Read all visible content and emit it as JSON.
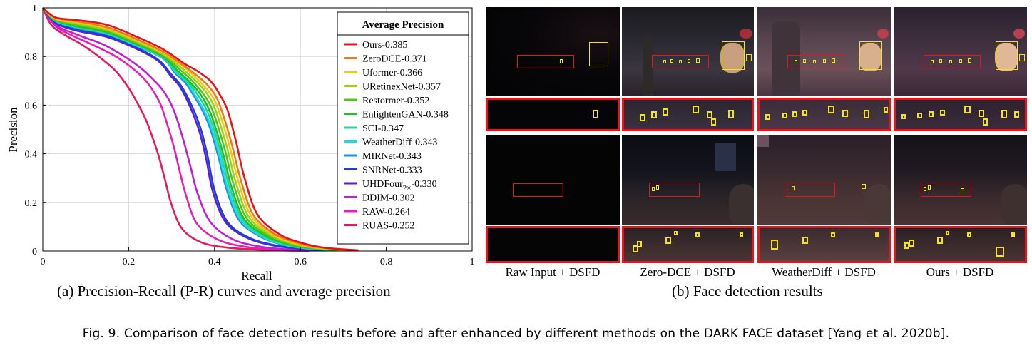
{
  "chart_data": {
    "type": "line",
    "xlabel": "Recall",
    "ylabel": "Precision",
    "xlim": [
      0,
      1
    ],
    "ylim": [
      0,
      1
    ],
    "xticks": [
      "0",
      "0.2",
      "0.4",
      "0.6",
      "0.8",
      "1"
    ],
    "yticks": [
      "0",
      "0.2",
      "0.4",
      "0.6",
      "0.8",
      "1"
    ],
    "grid": true,
    "legend_title": "Average Precision",
    "legend_position": "top-right",
    "series": [
      {
        "name": "Ours-0.385",
        "color": "#e8141b",
        "points": [
          [
            0,
            1
          ],
          [
            0.03,
            0.96
          ],
          [
            0.08,
            0.95
          ],
          [
            0.15,
            0.93
          ],
          [
            0.22,
            0.88
          ],
          [
            0.28,
            0.83
          ],
          [
            0.33,
            0.77
          ],
          [
            0.36,
            0.74
          ],
          [
            0.39,
            0.7
          ],
          [
            0.41,
            0.65
          ],
          [
            0.43,
            0.58
          ],
          [
            0.45,
            0.45
          ],
          [
            0.47,
            0.3
          ],
          [
            0.5,
            0.15
          ],
          [
            0.55,
            0.07
          ],
          [
            0.6,
            0.035
          ],
          [
            0.65,
            0.015
          ],
          [
            0.7,
            0.007
          ],
          [
            0.735,
            0.003
          ]
        ]
      },
      {
        "name": "ZeroDCE-0.371",
        "color": "#f27a14",
        "points": [
          [
            0,
            1
          ],
          [
            0.03,
            0.96
          ],
          [
            0.08,
            0.945
          ],
          [
            0.15,
            0.92
          ],
          [
            0.22,
            0.87
          ],
          [
            0.28,
            0.82
          ],
          [
            0.33,
            0.76
          ],
          [
            0.36,
            0.72
          ],
          [
            0.385,
            0.68
          ],
          [
            0.405,
            0.63
          ],
          [
            0.42,
            0.56
          ],
          [
            0.44,
            0.44
          ],
          [
            0.46,
            0.3
          ],
          [
            0.49,
            0.15
          ],
          [
            0.54,
            0.07
          ],
          [
            0.6,
            0.03
          ],
          [
            0.65,
            0.014
          ],
          [
            0.7,
            0.006
          ],
          [
            0.72,
            0.003
          ]
        ]
      },
      {
        "name": "Uformer-0.366",
        "color": "#e8cc1a",
        "points": [
          [
            0,
            1
          ],
          [
            0.03,
            0.955
          ],
          [
            0.08,
            0.94
          ],
          [
            0.15,
            0.915
          ],
          [
            0.22,
            0.865
          ],
          [
            0.28,
            0.815
          ],
          [
            0.33,
            0.755
          ],
          [
            0.355,
            0.715
          ],
          [
            0.38,
            0.67
          ],
          [
            0.4,
            0.62
          ],
          [
            0.415,
            0.55
          ],
          [
            0.435,
            0.43
          ],
          [
            0.455,
            0.29
          ],
          [
            0.485,
            0.145
          ],
          [
            0.535,
            0.068
          ],
          [
            0.59,
            0.03
          ],
          [
            0.64,
            0.014
          ],
          [
            0.69,
            0.006
          ],
          [
            0.715,
            0.003
          ]
        ]
      },
      {
        "name": "URetinexNet-0.357",
        "color": "#9ad41c",
        "points": [
          [
            0,
            1
          ],
          [
            0.03,
            0.955
          ],
          [
            0.08,
            0.935
          ],
          [
            0.15,
            0.91
          ],
          [
            0.22,
            0.86
          ],
          [
            0.28,
            0.81
          ],
          [
            0.325,
            0.75
          ],
          [
            0.35,
            0.71
          ],
          [
            0.375,
            0.665
          ],
          [
            0.395,
            0.61
          ],
          [
            0.41,
            0.54
          ],
          [
            0.43,
            0.42
          ],
          [
            0.45,
            0.28
          ],
          [
            0.48,
            0.14
          ],
          [
            0.53,
            0.066
          ],
          [
            0.585,
            0.029
          ],
          [
            0.635,
            0.013
          ],
          [
            0.685,
            0.006
          ],
          [
            0.71,
            0.003
          ]
        ]
      },
      {
        "name": "Restormer-0.352",
        "color": "#56c41c",
        "points": [
          [
            0,
            1
          ],
          [
            0.03,
            0.95
          ],
          [
            0.08,
            0.93
          ],
          [
            0.15,
            0.905
          ],
          [
            0.22,
            0.855
          ],
          [
            0.28,
            0.805
          ],
          [
            0.32,
            0.745
          ],
          [
            0.345,
            0.705
          ],
          [
            0.37,
            0.655
          ],
          [
            0.39,
            0.6
          ],
          [
            0.405,
            0.53
          ],
          [
            0.425,
            0.41
          ],
          [
            0.445,
            0.27
          ],
          [
            0.475,
            0.135
          ],
          [
            0.525,
            0.064
          ],
          [
            0.58,
            0.028
          ],
          [
            0.63,
            0.013
          ],
          [
            0.68,
            0.006
          ],
          [
            0.705,
            0.003
          ]
        ]
      },
      {
        "name": "EnlightenGAN-0.348",
        "color": "#1ec41e",
        "points": [
          [
            0,
            1
          ],
          [
            0.03,
            0.95
          ],
          [
            0.08,
            0.925
          ],
          [
            0.15,
            0.9
          ],
          [
            0.22,
            0.85
          ],
          [
            0.28,
            0.8
          ],
          [
            0.315,
            0.74
          ],
          [
            0.34,
            0.7
          ],
          [
            0.365,
            0.65
          ],
          [
            0.385,
            0.59
          ],
          [
            0.4,
            0.52
          ],
          [
            0.42,
            0.4
          ],
          [
            0.44,
            0.26
          ],
          [
            0.47,
            0.13
          ],
          [
            0.52,
            0.062
          ],
          [
            0.575,
            0.027
          ],
          [
            0.625,
            0.012
          ],
          [
            0.675,
            0.005
          ],
          [
            0.7,
            0.003
          ]
        ]
      },
      {
        "name": "SCI-0.347",
        "color": "#1ed7a0",
        "points": [
          [
            0,
            1
          ],
          [
            0.03,
            0.948
          ],
          [
            0.08,
            0.922
          ],
          [
            0.15,
            0.897
          ],
          [
            0.22,
            0.847
          ],
          [
            0.28,
            0.797
          ],
          [
            0.312,
            0.737
          ],
          [
            0.337,
            0.697
          ],
          [
            0.36,
            0.645
          ],
          [
            0.38,
            0.585
          ],
          [
            0.396,
            0.515
          ],
          [
            0.416,
            0.395
          ],
          [
            0.436,
            0.255
          ],
          [
            0.466,
            0.128
          ],
          [
            0.516,
            0.06
          ],
          [
            0.57,
            0.026
          ],
          [
            0.62,
            0.012
          ],
          [
            0.67,
            0.005
          ],
          [
            0.7,
            0.003
          ]
        ]
      },
      {
        "name": "WeatherDiff-0.343",
        "color": "#22d8e0",
        "points": [
          [
            0,
            1
          ],
          [
            0.03,
            0.946
          ],
          [
            0.08,
            0.92
          ],
          [
            0.15,
            0.894
          ],
          [
            0.22,
            0.844
          ],
          [
            0.28,
            0.794
          ],
          [
            0.31,
            0.735
          ],
          [
            0.335,
            0.695
          ],
          [
            0.355,
            0.64
          ],
          [
            0.375,
            0.58
          ],
          [
            0.392,
            0.51
          ],
          [
            0.412,
            0.39
          ],
          [
            0.432,
            0.25
          ],
          [
            0.462,
            0.125
          ],
          [
            0.512,
            0.058
          ],
          [
            0.565,
            0.025
          ],
          [
            0.615,
            0.011
          ],
          [
            0.665,
            0.005
          ],
          [
            0.695,
            0.003
          ]
        ]
      },
      {
        "name": "MIRNet-0.343",
        "color": "#1e90e8",
        "points": [
          [
            0,
            1
          ],
          [
            0.03,
            0.945
          ],
          [
            0.08,
            0.918
          ],
          [
            0.15,
            0.892
          ],
          [
            0.22,
            0.842
          ],
          [
            0.28,
            0.792
          ],
          [
            0.308,
            0.732
          ],
          [
            0.332,
            0.692
          ],
          [
            0.352,
            0.638
          ],
          [
            0.372,
            0.578
          ],
          [
            0.389,
            0.508
          ],
          [
            0.409,
            0.388
          ],
          [
            0.429,
            0.248
          ],
          [
            0.459,
            0.123
          ],
          [
            0.509,
            0.057
          ],
          [
            0.562,
            0.025
          ],
          [
            0.612,
            0.011
          ],
          [
            0.662,
            0.005
          ],
          [
            0.69,
            0.003
          ]
        ]
      },
      {
        "name": "SNRNet-0.333",
        "color": "#1e3ed6",
        "points": [
          [
            0,
            1
          ],
          [
            0.03,
            0.94
          ],
          [
            0.08,
            0.91
          ],
          [
            0.15,
            0.885
          ],
          [
            0.22,
            0.835
          ],
          [
            0.27,
            0.785
          ],
          [
            0.3,
            0.725
          ],
          [
            0.32,
            0.685
          ],
          [
            0.338,
            0.63
          ],
          [
            0.355,
            0.565
          ],
          [
            0.37,
            0.49
          ],
          [
            0.385,
            0.38
          ],
          [
            0.4,
            0.25
          ],
          [
            0.43,
            0.12
          ],
          [
            0.48,
            0.055
          ],
          [
            0.54,
            0.024
          ],
          [
            0.6,
            0.01
          ],
          [
            0.65,
            0.004
          ],
          [
            0.68,
            0.002
          ]
        ]
      },
      {
        "name": "UHDFour2×-0.330",
        "color": "#5b1ee0",
        "points": [
          [
            0,
            1
          ],
          [
            0.03,
            0.938
          ],
          [
            0.08,
            0.906
          ],
          [
            0.15,
            0.88
          ],
          [
            0.22,
            0.83
          ],
          [
            0.27,
            0.78
          ],
          [
            0.298,
            0.72
          ],
          [
            0.318,
            0.68
          ],
          [
            0.335,
            0.625
          ],
          [
            0.351,
            0.56
          ],
          [
            0.366,
            0.485
          ],
          [
            0.381,
            0.375
          ],
          [
            0.396,
            0.245
          ],
          [
            0.426,
            0.118
          ],
          [
            0.476,
            0.054
          ],
          [
            0.536,
            0.023
          ],
          [
            0.596,
            0.01
          ],
          [
            0.646,
            0.004
          ],
          [
            0.675,
            0.002
          ]
        ]
      },
      {
        "name": "DDIM-0.302",
        "color": "#c21ed6",
        "points": [
          [
            0,
            1
          ],
          [
            0.03,
            0.93
          ],
          [
            0.08,
            0.89
          ],
          [
            0.14,
            0.85
          ],
          [
            0.19,
            0.8
          ],
          [
            0.23,
            0.75
          ],
          [
            0.26,
            0.7
          ],
          [
            0.28,
            0.66
          ],
          [
            0.3,
            0.6
          ],
          [
            0.315,
            0.53
          ],
          [
            0.33,
            0.44
          ],
          [
            0.345,
            0.34
          ],
          [
            0.36,
            0.24
          ],
          [
            0.39,
            0.12
          ],
          [
            0.44,
            0.05
          ],
          [
            0.5,
            0.02
          ],
          [
            0.56,
            0.008
          ],
          [
            0.62,
            0.003
          ],
          [
            0.66,
            0.002
          ]
        ]
      },
      {
        "name": "RAW-0.264",
        "color": "#e81eb5",
        "points": [
          [
            0,
            1
          ],
          [
            0.03,
            0.925
          ],
          [
            0.07,
            0.885
          ],
          [
            0.12,
            0.845
          ],
          [
            0.17,
            0.8
          ],
          [
            0.21,
            0.75
          ],
          [
            0.24,
            0.7
          ],
          [
            0.26,
            0.65
          ],
          [
            0.275,
            0.6
          ],
          [
            0.29,
            0.52
          ],
          [
            0.305,
            0.43
          ],
          [
            0.32,
            0.32
          ],
          [
            0.335,
            0.22
          ],
          [
            0.36,
            0.11
          ],
          [
            0.41,
            0.045
          ],
          [
            0.47,
            0.018
          ],
          [
            0.53,
            0.007
          ],
          [
            0.6,
            0.003
          ],
          [
            0.64,
            0.002
          ]
        ]
      },
      {
        "name": "RUAS-0.252",
        "color": "#e8195e",
        "points": [
          [
            0,
            1
          ],
          [
            0.02,
            0.93
          ],
          [
            0.05,
            0.89
          ],
          [
            0.09,
            0.85
          ],
          [
            0.13,
            0.8
          ],
          [
            0.17,
            0.74
          ],
          [
            0.2,
            0.67
          ],
          [
            0.22,
            0.61
          ],
          [
            0.24,
            0.54
          ],
          [
            0.255,
            0.47
          ],
          [
            0.27,
            0.39
          ],
          [
            0.285,
            0.29
          ],
          [
            0.3,
            0.19
          ],
          [
            0.325,
            0.09
          ],
          [
            0.37,
            0.035
          ],
          [
            0.43,
            0.014
          ],
          [
            0.5,
            0.006
          ],
          [
            0.57,
            0.002
          ],
          [
            0.62,
            0.001
          ]
        ]
      }
    ]
  },
  "captions": {
    "panel_a": "(a) Precision-Recall (P-R) curves and average precision",
    "panel_b": "(b) Face detection results",
    "figure": "Fig. 9.  Comparison of face detection results before and after enhanced by different methods on the DARK FACE dataset [Yang et al. 2020b]."
  },
  "detection_columns": [
    "Raw Input + DSFD",
    "Zero-DCE + DSFD",
    "WeatherDiff + DSFD",
    "Ours + DSFD"
  ],
  "colors": {
    "detection_box": "#f5e31a",
    "zoom_box": "#e8141b"
  }
}
